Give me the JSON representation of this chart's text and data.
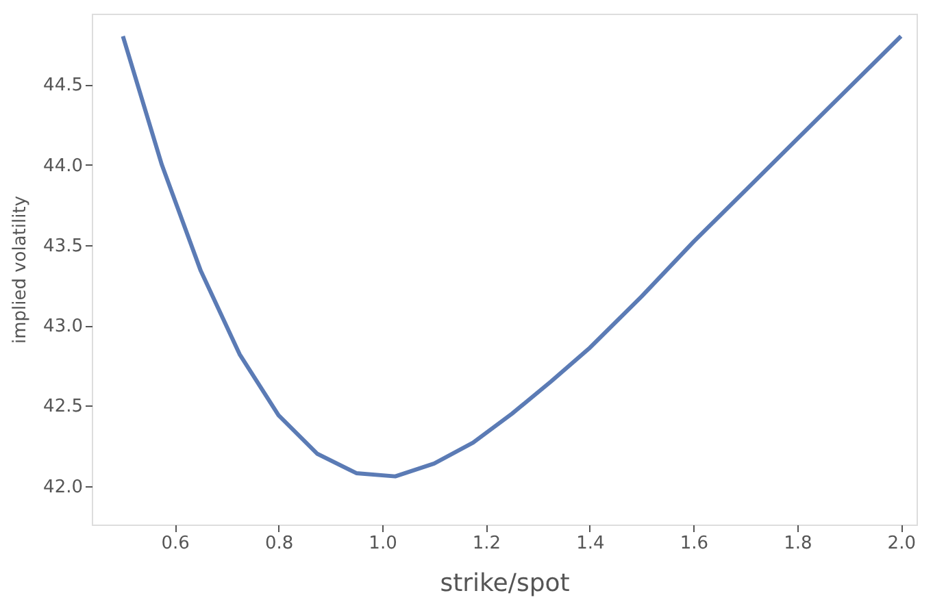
{
  "chart_data": {
    "type": "line",
    "xlabel": "strike/spot",
    "ylabel": "implied volatility",
    "x": [
      0.5,
      0.575,
      0.65,
      0.725,
      0.8,
      0.875,
      0.95,
      1.025,
      1.1,
      1.175,
      1.25,
      1.325,
      1.4,
      1.5,
      1.6,
      1.7,
      1.8,
      1.9,
      2.0
    ],
    "series": [
      {
        "color": "#5b7bb5",
        "values": [
          44.8,
          44.0,
          43.34,
          42.82,
          42.44,
          42.2,
          42.08,
          42.06,
          42.14,
          42.27,
          42.45,
          42.65,
          42.86,
          43.18,
          43.52,
          43.84,
          44.16,
          44.48,
          44.8
        ]
      }
    ],
    "xlim": [
      0.44,
      2.03
    ],
    "ylim": [
      41.76,
      44.94
    ],
    "xticks": [
      {
        "value": 0.6,
        "label": "0.6"
      },
      {
        "value": 0.8,
        "label": "0.8"
      },
      {
        "value": 1.0,
        "label": "1.0"
      },
      {
        "value": 1.2,
        "label": "1.2"
      },
      {
        "value": 1.4,
        "label": "1.4"
      },
      {
        "value": 1.6,
        "label": "1.6"
      },
      {
        "value": 1.8,
        "label": "1.8"
      },
      {
        "value": 2.0,
        "label": "2.0"
      }
    ],
    "yticks": [
      {
        "value": 42.0,
        "label": "42.0"
      },
      {
        "value": 42.5,
        "label": "42.5"
      },
      {
        "value": 43.0,
        "label": "43.0"
      },
      {
        "value": 43.5,
        "label": "43.5"
      },
      {
        "value": 44.0,
        "label": "44.0"
      },
      {
        "value": 44.5,
        "label": "44.5"
      }
    ],
    "grid": false,
    "marker": "none",
    "line_style": "solid"
  }
}
